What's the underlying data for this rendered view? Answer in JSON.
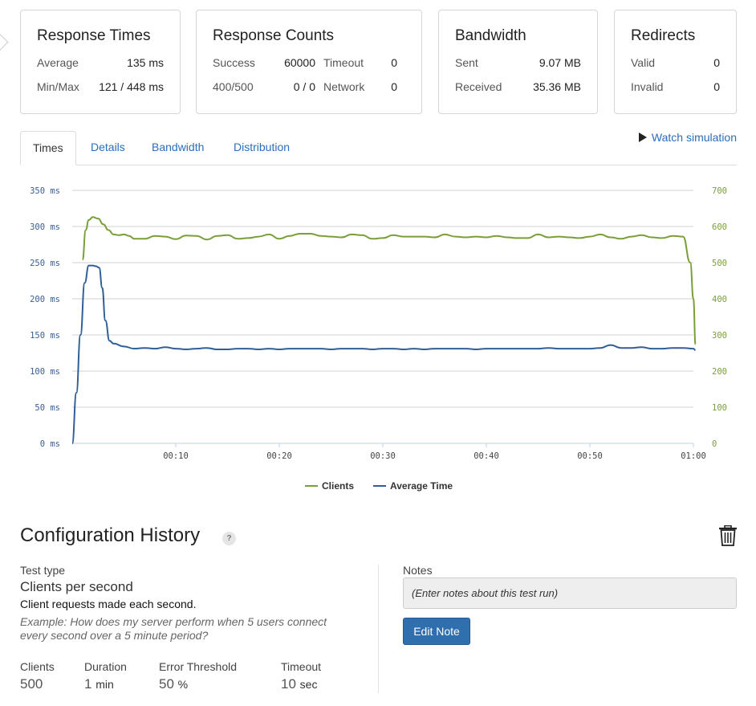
{
  "cards": {
    "response_times": {
      "title": "Response Times",
      "rows": [
        {
          "label": "Average",
          "value": "135 ms"
        },
        {
          "label": "Min/Max",
          "value": "121 / 448 ms"
        }
      ]
    },
    "response_counts": {
      "title": "Response Counts",
      "rows": [
        {
          "label": "Success",
          "value": "60000",
          "label2": "Timeout",
          "value2": "0"
        },
        {
          "label": "400/500",
          "value": "0 / 0",
          "label2": "Network",
          "value2": "0"
        }
      ]
    },
    "bandwidth": {
      "title": "Bandwidth",
      "rows": [
        {
          "label": "Sent",
          "value": "9.07 MB"
        },
        {
          "label": "Received",
          "value": "35.36 MB"
        }
      ]
    },
    "redirects": {
      "title": "Redirects",
      "rows": [
        {
          "label": "Valid",
          "value": "0"
        },
        {
          "label": "Invalid",
          "value": "0"
        }
      ]
    }
  },
  "tabs": [
    "Times",
    "Details",
    "Bandwidth",
    "Distribution"
  ],
  "watch_label": "Watch simulation",
  "colors": {
    "clients": "#7a9e3a",
    "average": "#2f5f96",
    "grid": "#d0d0d0",
    "left_axis": "#3a5f8f",
    "right_axis": "#7a9e3a",
    "button": "#2f6fae"
  },
  "chart_data": {
    "type": "line",
    "x_ticks": [
      "00:10",
      "00:20",
      "00:30",
      "00:40",
      "00:50",
      "01:00"
    ],
    "x_tick_seconds": [
      10,
      20,
      30,
      40,
      50,
      60
    ],
    "x_range": [
      0,
      60
    ],
    "y_left": {
      "ticks": [
        "0 ms",
        "50 ms",
        "100 ms",
        "150 ms",
        "200 ms",
        "250 ms",
        "300 ms",
        "350 ms"
      ],
      "range": [
        0,
        350
      ]
    },
    "y_right": {
      "ticks": [
        "0",
        "100",
        "200",
        "300",
        "400",
        "500",
        "600",
        "700"
      ],
      "range": [
        0,
        700
      ]
    },
    "series": [
      {
        "name": "Clients",
        "axis": "right",
        "x": [
          1,
          1.3,
          1.6,
          2,
          2.5,
          3,
          3.5,
          4,
          4.5,
          5,
          5.5,
          6,
          7,
          8,
          9,
          10,
          11,
          12,
          13,
          14,
          15,
          16,
          17,
          18,
          19,
          20,
          21,
          22,
          23,
          24,
          25,
          26,
          27,
          28,
          29,
          30,
          31,
          32,
          33,
          34,
          35,
          36,
          37,
          38,
          39,
          40,
          41,
          42,
          43,
          44,
          45,
          46,
          47,
          48,
          49,
          50,
          51,
          52,
          53,
          54,
          55,
          56,
          57,
          58,
          59,
          59.7,
          60,
          60.2
        ],
        "y": [
          508,
          590,
          618,
          626,
          622,
          606,
          590,
          578,
          576,
          578,
          574,
          566,
          566,
          574,
          572,
          565,
          575,
          574,
          564,
          574,
          576,
          566,
          568,
          572,
          578,
          566,
          574,
          580,
          580,
          574,
          572,
          570,
          578,
          576,
          566,
          568,
          576,
          572,
          572,
          572,
          570,
          578,
          572,
          570,
          572,
          570,
          574,
          570,
          568,
          568,
          578,
          570,
          572,
          570,
          568,
          572,
          578,
          570,
          566,
          572,
          576,
          570,
          568,
          574,
          572,
          500,
          400,
          274
        ]
      },
      {
        "name": "Average Time",
        "axis": "left",
        "x": [
          0,
          0.4,
          0.8,
          1.2,
          1.6,
          2,
          2.3,
          2.6,
          2.9,
          3.2,
          3.6,
          4,
          5,
          6,
          7,
          8,
          9,
          10,
          11,
          12,
          13,
          14,
          15,
          16,
          17,
          18,
          19,
          20,
          21,
          22,
          23,
          24,
          25,
          26,
          27,
          28,
          29,
          30,
          31,
          32,
          33,
          34,
          35,
          36,
          37,
          38,
          39,
          40,
          41,
          42,
          43,
          44,
          45,
          46,
          47,
          48,
          49,
          50,
          51,
          52,
          53,
          54,
          55,
          56,
          57,
          58,
          59,
          60,
          60.2
        ],
        "y": [
          0,
          70,
          150,
          222,
          246,
          246,
          245,
          243,
          215,
          170,
          142,
          138,
          134,
          131,
          132,
          131,
          133,
          131,
          130,
          131,
          132,
          130,
          130,
          131,
          131,
          130,
          131,
          130,
          131,
          131,
          131,
          131,
          130,
          131,
          131,
          131,
          130,
          131,
          131,
          130,
          131,
          130,
          131,
          131,
          131,
          131,
          130,
          131,
          131,
          131,
          131,
          131,
          131,
          132,
          131,
          131,
          131,
          131,
          132,
          136,
          132,
          132,
          133,
          131,
          131,
          132,
          132,
          131,
          129
        ]
      }
    ],
    "legend": [
      "Clients",
      "Average Time"
    ],
    "legend_position": "bottom-center"
  },
  "config": {
    "title": "Configuration History",
    "help": "?",
    "test_type_label": "Test type",
    "test_type": "Clients per second",
    "test_desc": "Client requests made each second.",
    "example": "Example: How does my server perform when 5 users connect every second over a 5 minute period?",
    "params": [
      {
        "label": "Clients",
        "value": "500",
        "unit": ""
      },
      {
        "label": "Duration",
        "value": "1",
        "unit": "min"
      },
      {
        "label": "Error Threshold",
        "value": "50",
        "unit": "%"
      },
      {
        "label": "Timeout",
        "value": "10",
        "unit": "sec"
      }
    ],
    "notes_label": "Notes",
    "notes_placeholder": "(Enter notes about this test run)",
    "edit_button": "Edit Note"
  }
}
